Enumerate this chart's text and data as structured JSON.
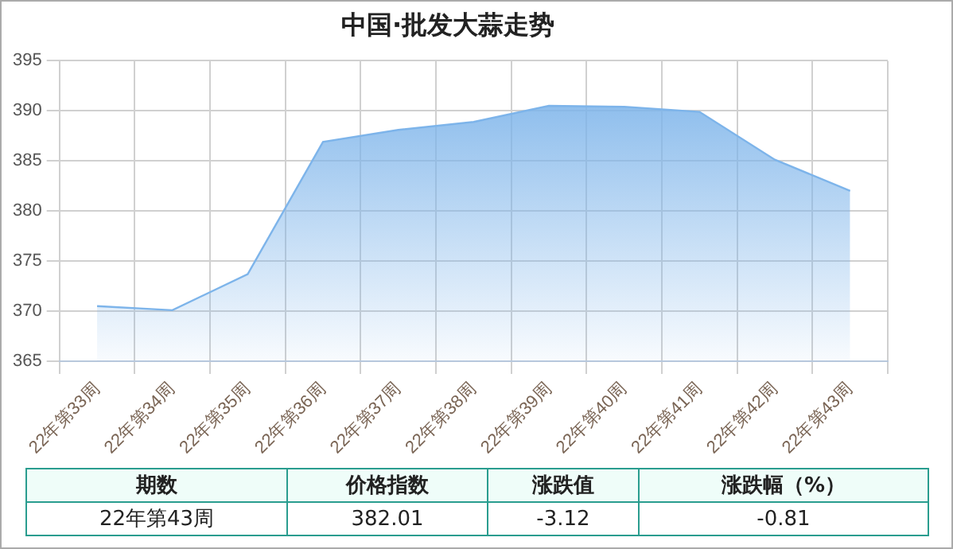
{
  "chart_data": {
    "type": "area",
    "title": "中国·批发大蒜走势",
    "categories": [
      "22年第33周",
      "22年第34周",
      "22年第35周",
      "22年第36周",
      "22年第37周",
      "22年第38周",
      "22年第39周",
      "22年第40周",
      "22年第41周",
      "22年第42周",
      "22年第43周"
    ],
    "series": [
      {
        "color": "#7db4ea",
        "values": [
          370.5,
          370.1,
          373.7,
          386.9,
          388.1,
          388.9,
          390.5,
          390.4,
          389.9,
          385.13,
          382.01
        ]
      }
    ],
    "ylim": [
      365,
      395
    ],
    "yticks": [
      365,
      370,
      375,
      380,
      385,
      390,
      395
    ],
    "grid": true,
    "legend": false,
    "marker": "none",
    "annotations": [
      "期数",
      "价格指数",
      "涨跌值",
      "涨跌幅（%）",
      "22年第43周",
      "382.01",
      "-3.12",
      "-0.81"
    ]
  }
}
